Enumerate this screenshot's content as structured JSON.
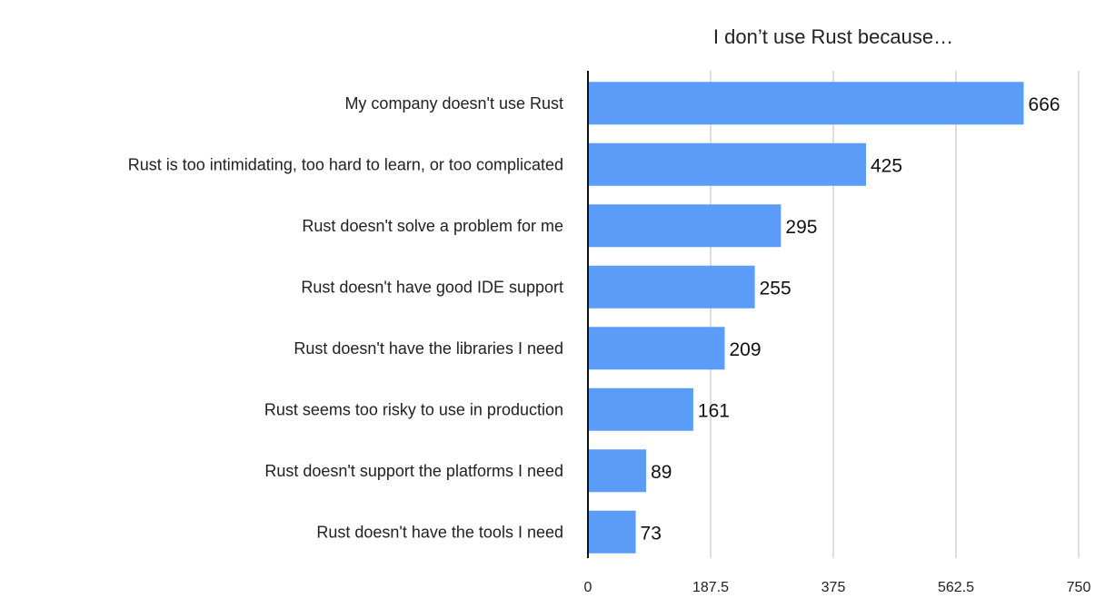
{
  "chart_data": {
    "type": "bar",
    "orientation": "horizontal",
    "title": "I don’t use Rust because…",
    "categories": [
      "My company doesn't use Rust",
      "Rust is too intimidating, too hard to learn, or too complicated",
      "Rust doesn't solve a problem for me",
      "Rust doesn't have good IDE support",
      "Rust doesn't have the libraries I need",
      "Rust seems too risky to use in production",
      "Rust doesn't support the platforms I need",
      "Rust doesn't have the tools I need"
    ],
    "values": [
      666,
      425,
      295,
      255,
      209,
      161,
      89,
      73
    ],
    "value_labels": [
      "666",
      "425",
      "295",
      "255",
      "209",
      "161",
      "89",
      "73"
    ],
    "xlim": [
      0,
      750
    ],
    "xticks": [
      "0",
      "187.5",
      "375",
      "562.5",
      "750"
    ],
    "xtick_values": [
      0,
      187.5,
      375,
      562.5,
      750
    ],
    "grid": true,
    "bar_color": "#5B9CF8",
    "grid_color": "#c8c8c8"
  }
}
